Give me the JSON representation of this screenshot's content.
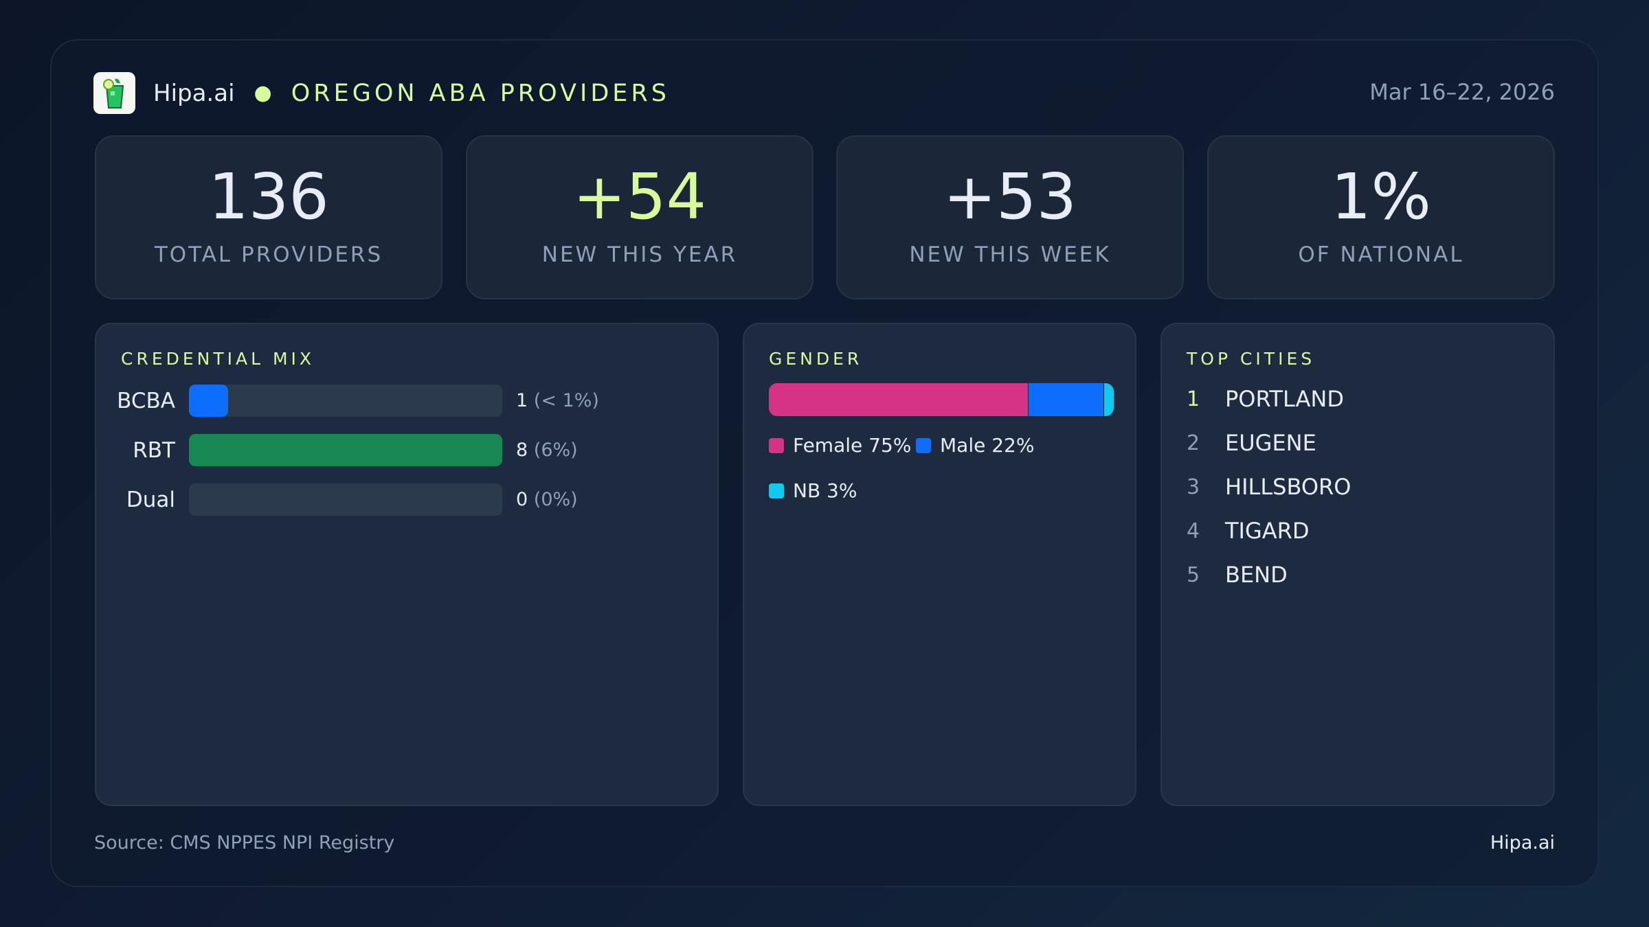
{
  "header": {
    "brand": "Hipa.ai",
    "title": "OREGON ABA PROVIDERS",
    "date_range": "Mar 16–22, 2026",
    "logo_icon": "mojito-glass-icon"
  },
  "kpis": [
    {
      "value": "136",
      "label": "TOTAL PROVIDERS",
      "color": "#ffffff"
    },
    {
      "value": "+54",
      "label": "NEW THIS YEAR",
      "color": "#d9f99d"
    },
    {
      "value": "+53",
      "label": "NEW THIS WEEK",
      "color": "#ffffff"
    },
    {
      "value": "1%",
      "label": "OF NATIONAL",
      "color": "#ffffff"
    }
  ],
  "credential_mix": {
    "title": "CREDENTIAL MIX",
    "rows": [
      {
        "label": "BCBA",
        "count": "1",
        "pct": "(< 1%)",
        "fill": 0.125,
        "color": "#0d6efd"
      },
      {
        "label": "RBT",
        "count": "8",
        "pct": "(6%)",
        "fill": 1.0,
        "color": "#198754"
      },
      {
        "label": "Dual",
        "count": "0",
        "pct": "(0%)",
        "fill": 0,
        "color": "#6f42c1"
      }
    ]
  },
  "gender": {
    "title": "GENDER",
    "segments": [
      {
        "label": "Female 75%",
        "value": 75,
        "color": "#d63384"
      },
      {
        "label": "Male 22%",
        "value": 22,
        "color": "#0d6efd"
      },
      {
        "label": "NB 3%",
        "value": 3,
        "color": "#0dcaf0"
      }
    ]
  },
  "top_cities": {
    "title": "TOP CITIES",
    "items": [
      {
        "rank": "1",
        "name": "PORTLAND"
      },
      {
        "rank": "2",
        "name": "EUGENE"
      },
      {
        "rank": "3",
        "name": "HILLSBORO"
      },
      {
        "rank": "4",
        "name": "TIGARD"
      },
      {
        "rank": "5",
        "name": "BEND"
      }
    ]
  },
  "footer": {
    "source": "Source: CMS NPPES NPI Registry",
    "brand": "Hipa.ai"
  }
}
